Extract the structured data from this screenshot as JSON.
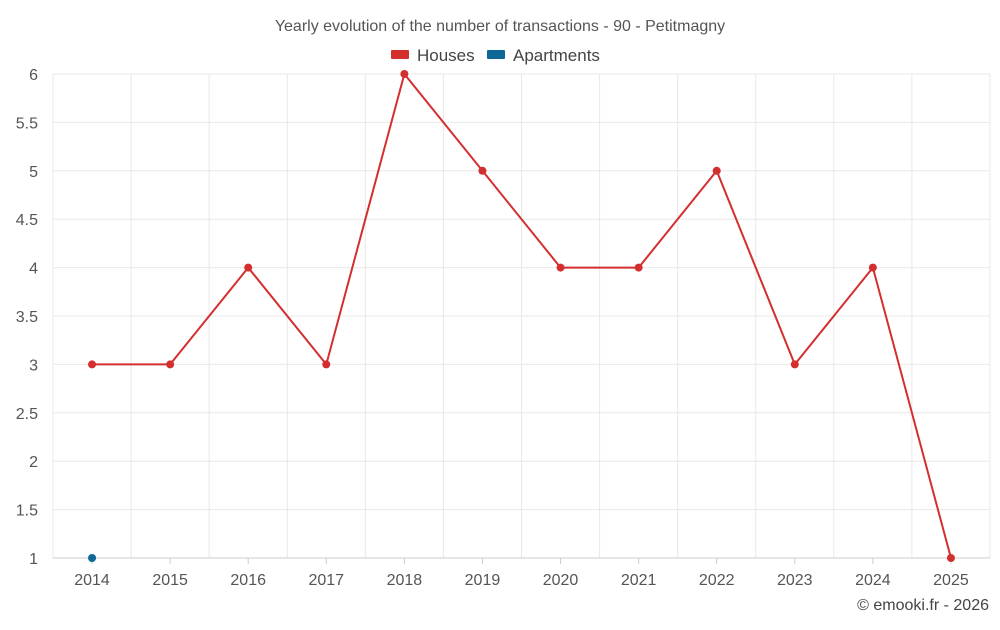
{
  "chart_data": {
    "type": "line",
    "title": "Yearly evolution of the number of transactions - 90 - Petitmagny",
    "categories": [
      "2014",
      "2015",
      "2016",
      "2017",
      "2018",
      "2019",
      "2020",
      "2021",
      "2022",
      "2023",
      "2024",
      "2025"
    ],
    "series": [
      {
        "name": "Houses",
        "color": "#d32f2f",
        "values": [
          3,
          3,
          4,
          3,
          6,
          5,
          4,
          4,
          5,
          3,
          4,
          1
        ]
      },
      {
        "name": "Apartments",
        "color": "#0d6797",
        "values": [
          1,
          null,
          null,
          null,
          null,
          null,
          null,
          null,
          null,
          null,
          null,
          null
        ]
      }
    ],
    "yticks": [
      "1",
      "1.5",
      "2",
      "2.5",
      "3",
      "3.5",
      "4",
      "4.5",
      "5",
      "5.5",
      "6"
    ],
    "ylim": [
      1,
      6
    ],
    "grid": true,
    "legend_position": "top-center"
  },
  "credit": "© emooki.fr - 2026"
}
